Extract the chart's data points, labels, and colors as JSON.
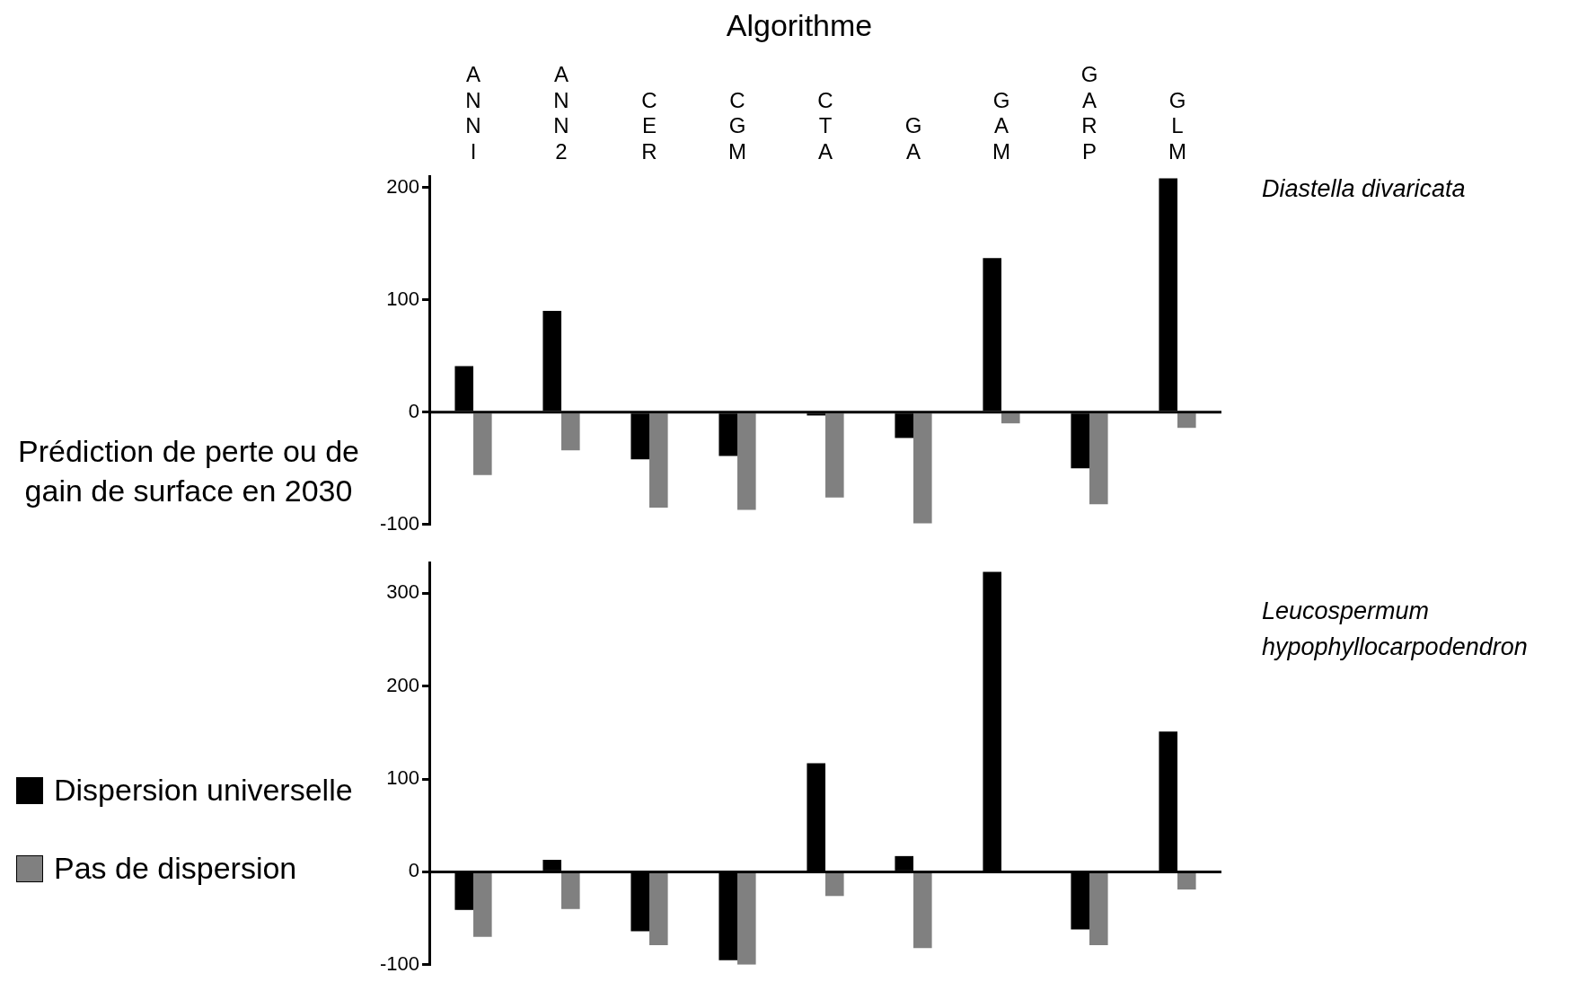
{
  "chart_data": [
    {
      "type": "bar",
      "title": "Algorithme",
      "ylabel": "Prédiction de perte ou de gain de surface en 2030",
      "annotations": [
        "Diastella divaricata"
      ],
      "categories": [
        "ANNI",
        "ANN2",
        "CER",
        "CGM",
        "CTA",
        "GA",
        "GAM",
        "GARP",
        "GLM"
      ],
      "series": [
        {
          "color": "#000000",
          "values": [
            41,
            90,
            -42,
            -39,
            -3,
            -23,
            137,
            -50,
            208
          ]
        },
        {
          "color": "#808080",
          "values": [
            -56,
            -34,
            -85,
            -87,
            -76,
            -99,
            -10,
            -82,
            -14
          ]
        }
      ],
      "ylim": [
        -100,
        210
      ],
      "yticks": [
        -100,
        0,
        100,
        200
      ],
      "grid": false,
      "legend": false,
      "ref_lines": [
        {
          "axis": "y",
          "value": 0,
          "color": "#000000"
        }
      ]
    },
    {
      "type": "bar",
      "annotations": [
        "Leucospermum hypophyllocarpodendron"
      ],
      "categories": [
        null,
        null,
        null,
        null,
        null,
        null,
        null,
        null,
        null
      ],
      "series": [
        {
          "name": "Dispersion universelle",
          "color": "#000000",
          "values": [
            -41,
            13,
            -64,
            -95,
            117,
            17,
            323,
            -62,
            151
          ]
        },
        {
          "name": "Pas de dispersion",
          "color": "#808080",
          "values": [
            -70,
            -40,
            -79,
            -100,
            -26,
            -82,
            null,
            -79,
            -19
          ]
        }
      ],
      "ylim": [
        -100,
        333
      ],
      "yticks": [
        -100,
        0,
        100,
        200,
        300
      ],
      "grid": false,
      "legend": "left",
      "ref_lines": [
        {
          "axis": "y",
          "value": 0,
          "color": "#000000"
        }
      ]
    }
  ]
}
